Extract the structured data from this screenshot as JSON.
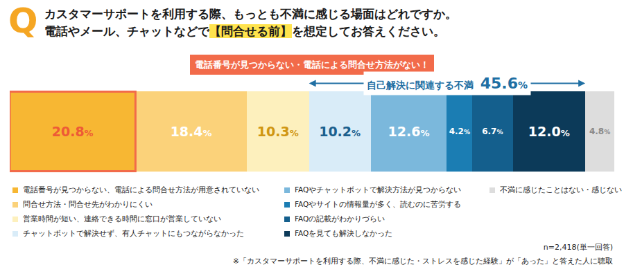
{
  "chart_data": {
    "type": "bar",
    "orientation": "horizontal",
    "stacked": true,
    "data_labels": true,
    "tick_labels": false,
    "legend": "bottom",
    "title": "カスタマーサポートを利用する際、もっとも不満に感じる場面はどれですか。\n電話やメール、チャットなどで【問合せる前】を想定してお答えください。",
    "categories": [
      null
    ],
    "xlim": [
      0,
      100
    ],
    "series": [
      {
        "name": "電話番号が見つからない、電話による問合せ方法が用意されていない",
        "color": "#f7b733",
        "values": [
          20.8
        ],
        "value_labels": [
          "20.8%"
        ]
      },
      {
        "name": "問合せ方法・問合せ先がわかりにくい",
        "color": "#fbd27a",
        "values": [
          18.4
        ],
        "value_labels": [
          "18.4%"
        ]
      },
      {
        "name": "営業時間が短い、連絡できる時間に窓口が営業していない",
        "color": "#fdf0bd",
        "values": [
          10.3
        ],
        "value_labels": [
          "10.3%"
        ]
      },
      {
        "name": "チャットボットで解決せず、有人チャットにもつながらなかった",
        "color": "#d9ecf8",
        "values": [
          10.2
        ],
        "value_labels": [
          "10.2%"
        ]
      },
      {
        "name": "FAQやチャットボットで解決方法が見つからない",
        "color": "#7bb8dc",
        "values": [
          12.6
        ],
        "value_labels": [
          "12.6%"
        ]
      },
      {
        "name": "FAQやサイトの情報量が多く、読むのに苦労する",
        "color": "#1b7db3",
        "values": [
          4.2
        ],
        "value_labels": [
          "4.2%"
        ]
      },
      {
        "name": "FAQの記載がわかりづらい",
        "color": "#145f8d",
        "values": [
          6.7
        ],
        "value_labels": [
          "6.7%"
        ]
      },
      {
        "name": "FAQを見ても解決しなかった",
        "color": "#0c3a59",
        "values": [
          12.0
        ],
        "value_labels": [
          "12.0%"
        ]
      },
      {
        "name": "不満に感じたことはない・感じない",
        "color": "#dddddd",
        "values": [
          4.8
        ],
        "value_labels": [
          "4.8%"
        ]
      }
    ],
    "annotations": [
      {
        "text": "Q"
      },
      {
        "text": "電話番号が見つからない・電話による問合せ方法がない！"
      },
      {
        "text": "自己解決に関連する不満",
        "value": 45.6,
        "value_label": "45.6%"
      }
    ],
    "notes": [
      "n=2,418(単一回答)",
      "※「カスタマーサポートを利用する際、不満に感じた・ストレスを感じた経験」が「あった」と答えた人に聴取"
    ]
  }
}
